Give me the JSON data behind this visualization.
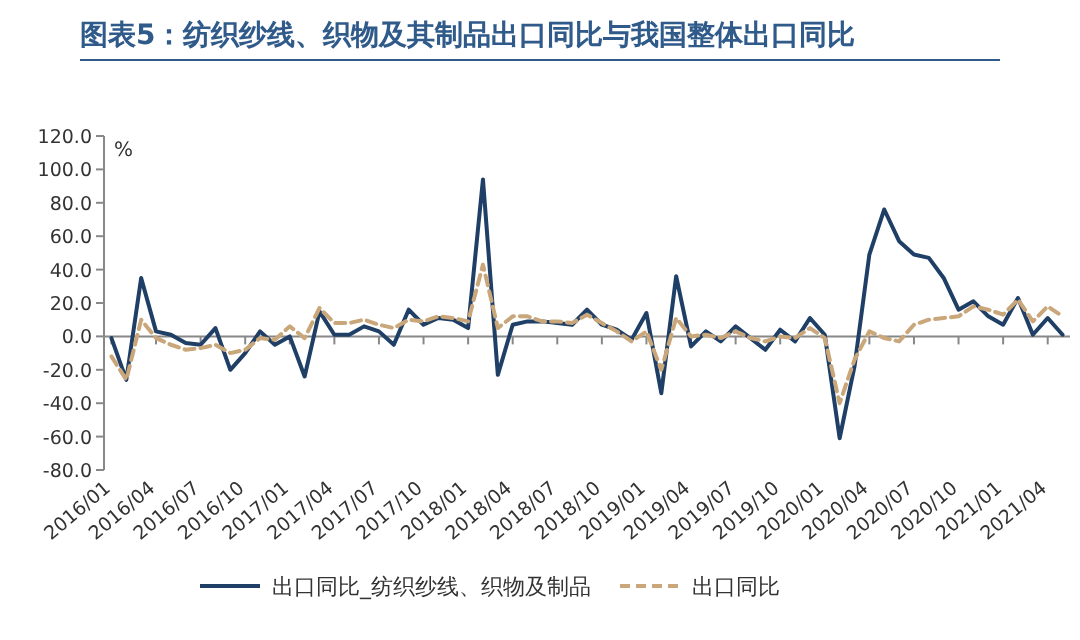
{
  "chart_data": {
    "type": "line",
    "title": "图表5：纺织纱线、织物及其制品出口同比与我国整体出口同比",
    "ylabel": "%",
    "categories": [
      "2016/01",
      null,
      null,
      "2016/04",
      null,
      null,
      "2016/07",
      null,
      null,
      "2016/10",
      null,
      null,
      "2017/01",
      null,
      null,
      "2017/04",
      null,
      null,
      "2017/07",
      null,
      null,
      "2017/10",
      null,
      null,
      "2018/01",
      null,
      null,
      "2018/04",
      null,
      null,
      "2018/07",
      null,
      null,
      "2018/10",
      null,
      null,
      "2019/01",
      null,
      null,
      "2019/04",
      null,
      null,
      "2019/07",
      null,
      null,
      "2019/10",
      null,
      null,
      "2020/01",
      null,
      null,
      "2020/04",
      null,
      null,
      "2020/07",
      null,
      null,
      "2020/10",
      null,
      null,
      "2021/01",
      null,
      null,
      "2021/04",
      null
    ],
    "series": [
      {
        "name": "出口同比_纺织纱线、织物及制品",
        "color": "#1f3f66",
        "line_style": "solid",
        "values": [
          -1,
          -26,
          35,
          3,
          1,
          -4,
          -5,
          5,
          -20,
          -10,
          3,
          -5,
          0,
          -24,
          15,
          1,
          1,
          6,
          3,
          -5,
          16,
          7,
          11,
          10,
          5,
          94,
          -23,
          7,
          9,
          9,
          8,
          7,
          16,
          7,
          4,
          -2,
          14,
          -34,
          36,
          -6,
          3,
          -3,
          6,
          -1,
          -8,
          4,
          -3,
          11,
          1,
          -61,
          -18,
          49,
          76,
          57,
          49,
          47,
          35,
          16,
          21,
          12,
          7,
          23,
          1,
          11,
          1
        ]
      },
      {
        "name": "出口同比",
        "color": "#c9a77a",
        "line_style": "dashed",
        "values": [
          -12,
          -26,
          10,
          -1,
          -5,
          -8,
          -7,
          -5,
          -10,
          -8,
          -1,
          -2,
          6,
          -1,
          17,
          8,
          8,
          10,
          7,
          5,
          10,
          9,
          12,
          11,
          9,
          43,
          5,
          12,
          12,
          9,
          9,
          8,
          13,
          8,
          3,
          -3,
          3,
          -20,
          11,
          0,
          1,
          -1,
          3,
          -1,
          -3,
          0,
          -1,
          5,
          -1,
          -40,
          -14,
          3,
          -1,
          -3,
          7,
          10,
          11,
          12,
          18,
          16,
          13,
          22,
          9,
          18,
          12
        ]
      }
    ],
    "ylim": [
      -80,
      120
    ],
    "yticks": [
      {
        "value": -80,
        "label": "-80.0"
      },
      {
        "value": -60,
        "label": "-60.0"
      },
      {
        "value": -40,
        "label": "-40.0"
      },
      {
        "value": -20,
        "label": "-20.0"
      },
      {
        "value": 0,
        "label": "0.0"
      },
      {
        "value": 20,
        "label": "20.0"
      },
      {
        "value": 40,
        "label": "40.0"
      },
      {
        "value": 60,
        "label": "60.0"
      },
      {
        "value": 80,
        "label": "80.0"
      },
      {
        "value": 100,
        "label": "100.0"
      },
      {
        "value": 120,
        "label": "120.0"
      }
    ],
    "legend": "bottom",
    "marker": "none"
  }
}
